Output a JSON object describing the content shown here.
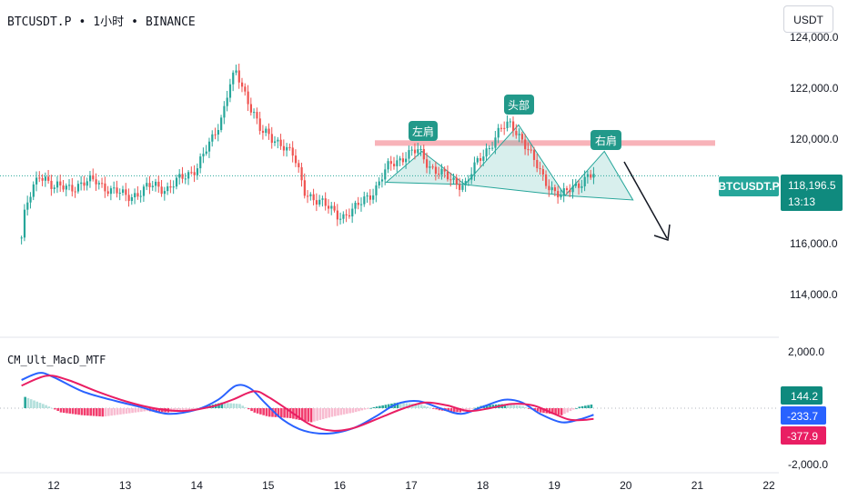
{
  "header": {
    "symbol": "BTCUSDT.P",
    "interval": "1小时",
    "exchange": "BINANCE"
  },
  "currency_button": "USDT",
  "price_axis": {
    "ticks": [
      "124,000.0",
      "122,000.0",
      "120,000.0",
      "116,000.0",
      "114,000.0"
    ],
    "symbol_tag": "BTCUSDT.P",
    "current_price": "118,196.5",
    "countdown": "13:13"
  },
  "macd_axis": {
    "ticks": [
      "2,000.0",
      "-2,000.0"
    ],
    "title": "CM_Ult_MacD_MTF",
    "values": {
      "histogram": "144.2",
      "macd": "-233.7",
      "signal": "-377.9"
    }
  },
  "annotations": {
    "left_shoulder": "左肩",
    "head": "头部",
    "right_shoulder": "右肩"
  },
  "colors": {
    "up": "#26a69a",
    "down": "#ef5350",
    "macd": "#2962ff",
    "signal": "#e91e63",
    "hist_up": "#26a69a",
    "hist_up_light": "#b2dfdb",
    "hist_down": "#f23c6d",
    "hist_down_light": "#f8bbd0",
    "resistance": "#f7a6ad",
    "pattern": "#26a69a"
  },
  "chart_data": [
    {
      "type": "candlestick",
      "title": "BTCUSDT.P · 1小时 · BINANCE",
      "x": [
        "12",
        "13",
        "14",
        "15",
        "16",
        "17",
        "18",
        "19",
        "20",
        "21",
        "22"
      ],
      "ylim": [
        112700,
        124500
      ],
      "current_price": 118196.5,
      "resistance_zone": [
        119550,
        119800
      ],
      "close_path": [
        [
          11.55,
          115400
        ],
        [
          11.6,
          116600
        ],
        [
          11.7,
          117500
        ],
        [
          11.8,
          118300
        ],
        [
          11.9,
          118100
        ],
        [
          12.0,
          117600
        ],
        [
          12.2,
          117700
        ],
        [
          12.4,
          117800
        ],
        [
          12.6,
          118000
        ],
        [
          12.8,
          117500
        ],
        [
          13.0,
          117300
        ],
        [
          13.2,
          117400
        ],
        [
          13.4,
          117800
        ],
        [
          13.6,
          117600
        ],
        [
          13.8,
          118100
        ],
        [
          14.0,
          118600
        ],
        [
          14.2,
          119700
        ],
        [
          14.35,
          120900
        ],
        [
          14.45,
          122300
        ],
        [
          14.55,
          122800
        ],
        [
          14.65,
          122000
        ],
        [
          14.8,
          121100
        ],
        [
          14.9,
          120200
        ],
        [
          15.05,
          119800
        ],
        [
          15.2,
          119700
        ],
        [
          15.35,
          119100
        ],
        [
          15.5,
          117500
        ],
        [
          15.65,
          117200
        ],
        [
          15.8,
          116800
        ],
        [
          15.95,
          116500
        ],
        [
          16.05,
          116400
        ],
        [
          16.2,
          116600
        ],
        [
          16.35,
          117200
        ],
        [
          16.5,
          117600
        ],
        [
          16.7,
          118700
        ],
        [
          16.9,
          119100
        ],
        [
          17.1,
          119300
        ],
        [
          17.25,
          118700
        ],
        [
          17.4,
          118300
        ],
        [
          17.55,
          118000
        ],
        [
          17.75,
          117800
        ],
        [
          17.95,
          118900
        ],
        [
          18.1,
          119600
        ],
        [
          18.25,
          120300
        ],
        [
          18.4,
          120500
        ],
        [
          18.55,
          119900
        ],
        [
          18.7,
          118900
        ],
        [
          18.85,
          118100
        ],
        [
          19.0,
          117500
        ],
        [
          19.1,
          117200
        ],
        [
          19.25,
          117700
        ],
        [
          19.45,
          118100
        ],
        [
          19.55,
          118200
        ]
      ]
    },
    {
      "type": "line",
      "title": "CM_Ult_MacD_MTF",
      "ylim": [
        -2000,
        2000
      ],
      "series": [
        {
          "name": "MACD",
          "points": [
            [
              11.55,
              1000
            ],
            [
              11.8,
              1250
            ],
            [
              12.0,
              1100
            ],
            [
              12.4,
              600
            ],
            [
              12.8,
              300
            ],
            [
              13.2,
              50
            ],
            [
              13.6,
              -200
            ],
            [
              14.0,
              -50
            ],
            [
              14.3,
              300
            ],
            [
              14.55,
              800
            ],
            [
              14.75,
              700
            ],
            [
              14.95,
              200
            ],
            [
              15.2,
              -400
            ],
            [
              15.5,
              -800
            ],
            [
              15.85,
              -900
            ],
            [
              16.2,
              -700
            ],
            [
              16.5,
              -300
            ],
            [
              16.8,
              150
            ],
            [
              17.1,
              250
            ],
            [
              17.4,
              0
            ],
            [
              17.7,
              -200
            ],
            [
              18.0,
              50
            ],
            [
              18.3,
              300
            ],
            [
              18.55,
              200
            ],
            [
              18.8,
              -200
            ],
            [
              19.1,
              -500
            ],
            [
              19.35,
              -400
            ],
            [
              19.55,
              -233.7
            ]
          ]
        },
        {
          "name": "Signal",
          "points": [
            [
              11.55,
              800
            ],
            [
              11.9,
              1150
            ],
            [
              12.2,
              1000
            ],
            [
              12.6,
              600
            ],
            [
              13.0,
              250
            ],
            [
              13.4,
              0
            ],
            [
              13.8,
              -100
            ],
            [
              14.2,
              50
            ],
            [
              14.5,
              300
            ],
            [
              14.8,
              600
            ],
            [
              15.0,
              400
            ],
            [
              15.3,
              -100
            ],
            [
              15.6,
              -600
            ],
            [
              15.9,
              -800
            ],
            [
              16.2,
              -700
            ],
            [
              16.6,
              -300
            ],
            [
              16.9,
              0
            ],
            [
              17.2,
              200
            ],
            [
              17.5,
              100
            ],
            [
              17.8,
              -100
            ],
            [
              18.1,
              0
            ],
            [
              18.4,
              150
            ],
            [
              18.7,
              100
            ],
            [
              18.95,
              -150
            ],
            [
              19.2,
              -400
            ],
            [
              19.4,
              -420
            ],
            [
              19.55,
              -377.9
            ]
          ]
        },
        {
          "name": "Histogram",
          "points": [
            [
              11.6,
              400
            ],
            [
              11.9,
              100
            ],
            [
              12.1,
              -150
            ],
            [
              12.4,
              -250
            ],
            [
              12.7,
              -300
            ],
            [
              13.0,
              -200
            ],
            [
              13.3,
              -100
            ],
            [
              13.6,
              -150
            ],
            [
              13.9,
              -80
            ],
            [
              14.1,
              50
            ],
            [
              14.35,
              200
            ],
            [
              14.6,
              150
            ],
            [
              14.8,
              -150
            ],
            [
              15.0,
              -300
            ],
            [
              15.3,
              -350
            ],
            [
              15.6,
              -500
            ],
            [
              15.9,
              -300
            ],
            [
              16.2,
              -150
            ],
            [
              16.5,
              50
            ],
            [
              16.8,
              200
            ],
            [
              17.1,
              150
            ],
            [
              17.4,
              -80
            ],
            [
              17.7,
              -150
            ],
            [
              18.0,
              100
            ],
            [
              18.3,
              150
            ],
            [
              18.55,
              80
            ],
            [
              18.8,
              -150
            ],
            [
              19.1,
              -250
            ],
            [
              19.35,
              50
            ],
            [
              19.55,
              144.2
            ]
          ]
        }
      ]
    }
  ]
}
